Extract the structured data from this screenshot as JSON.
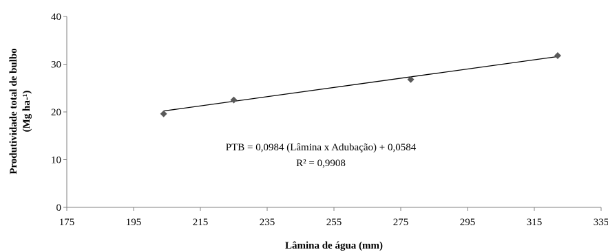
{
  "chart_data": {
    "type": "scatter",
    "title": "",
    "xlabel": "Lâmina de água (mm)",
    "ylabel": "Produtividade total de bulbo",
    "ylabel_unit": "(Mg ha-¹)",
    "xlim": [
      175,
      335
    ],
    "ylim": [
      0,
      40
    ],
    "x_ticks": [
      175,
      195,
      215,
      235,
      255,
      275,
      295,
      315,
      335
    ],
    "y_ticks": [
      0,
      10,
      20,
      30,
      40
    ],
    "grid": false,
    "legend": "none",
    "series": [
      {
        "points": [
          {
            "x": 204,
            "y": 19.6
          },
          {
            "x": 225,
            "y": 22.5
          },
          {
            "x": 278,
            "y": 26.8
          },
          {
            "x": 322,
            "y": 31.8
          }
        ]
      }
    ],
    "trendline": {
      "x": [
        204,
        322
      ],
      "y": [
        20.2,
        31.6
      ]
    },
    "annotations": [
      "PTB = 0,0984 (Lâmina  x Adubação) + 0,0584",
      "R² = 0,9908"
    ],
    "colors": {
      "marker": "#595959",
      "line": "#000000",
      "axis": "#808080"
    }
  }
}
